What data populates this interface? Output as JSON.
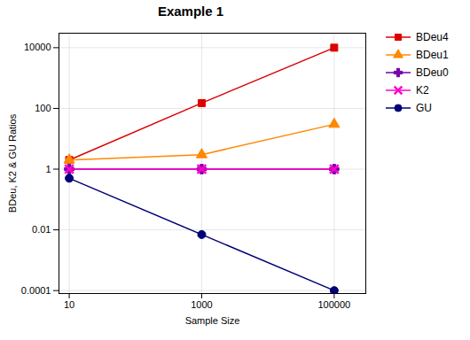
{
  "chart_data": {
    "type": "line",
    "title": "Example 1",
    "xlabel": "Sample Size",
    "ylabel": "BDeu, K2 & GU Ratios",
    "x": [
      10,
      1000,
      100000
    ],
    "series": [
      {
        "name": "BDeu4",
        "color": "#dd0000",
        "marker": "square",
        "values": [
          2.0,
          150.0,
          10000.0
        ]
      },
      {
        "name": "BDeu1",
        "color": "#ff8800",
        "marker": "triangle",
        "values": [
          2.0,
          3.0,
          30.0
        ]
      },
      {
        "name": "BDeu0",
        "color": "#7700aa",
        "marker": "plus",
        "values": [
          1.0,
          1.0,
          1.0
        ]
      },
      {
        "name": "K2",
        "color": "#ff00cc",
        "marker": "x",
        "values": [
          1.0,
          1.0,
          1.0
        ]
      },
      {
        "name": "GU",
        "color": "#000077",
        "marker": "circle",
        "values": [
          0.5,
          0.007,
          0.0001
        ]
      }
    ],
    "xlim": [
      7,
      300000
    ],
    "ylim": [
      8e-05,
      30000
    ],
    "xticks": [
      10,
      1000,
      100000
    ],
    "yticks": [
      0.0001,
      0.01,
      1,
      100,
      10000
    ],
    "log": true,
    "grid": true,
    "legend": "right"
  }
}
